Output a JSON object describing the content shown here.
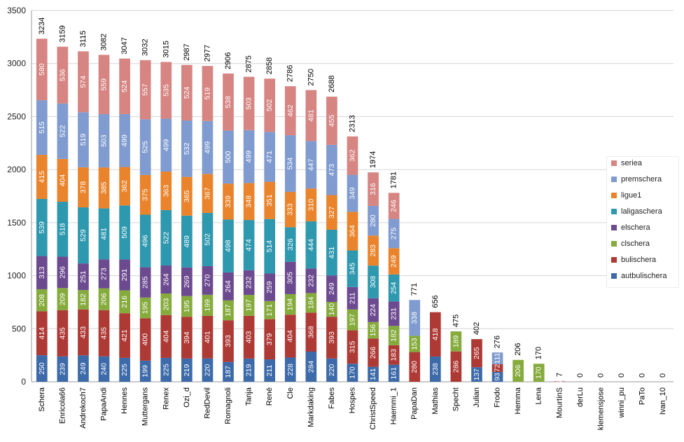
{
  "chart_data": {
    "type": "bar",
    "stacked": true,
    "ylim": [
      0,
      3500
    ],
    "yticks": [
      "0",
      "500",
      "1000",
      "1500",
      "2000",
      "2500",
      "3000",
      "3500"
    ],
    "grid": true,
    "legend_position": "right",
    "categories": [
      "Schera",
      "Enricola66",
      "Andrekoch7",
      "PapaAndi",
      "Hennes",
      "Muttergans",
      "Renex",
      "Ozi_d",
      "RedDevil",
      "Romagnoli",
      "Tanja",
      "René",
      "Cle",
      "Markdaking",
      "Fabes",
      "Hospes",
      "ChristSpeed",
      "Haemmi_1",
      "PapaDan",
      "Mathias",
      "Specht",
      "Julian",
      "Frodo",
      "Hemma",
      "Lena",
      "MourtinS",
      "derLu",
      "klemensjose",
      "winni_pu",
      "PaTo",
      "Ivan_10"
    ],
    "totals": [
      "3234",
      "3159",
      "3115",
      "3082",
      "3047",
      "3032",
      "3015",
      "2987",
      "2977",
      "2906",
      "2875",
      "2858",
      "2786",
      "2750",
      "2688",
      "2313",
      "1974",
      "1781",
      "771",
      "656",
      "475",
      "402",
      "276",
      "206",
      "170",
      "7",
      "0",
      "0",
      "0",
      "0",
      "0"
    ],
    "series": [
      {
        "name": "autbulischera",
        "color": "#3d6aa9",
        "values": [
          250,
          239,
          249,
          240,
          225,
          199,
          225,
          219,
          220,
          187,
          219,
          211,
          228,
          284,
          220,
          170,
          141,
          161,
          0,
          238,
          0,
          137,
          93,
          0,
          0,
          0,
          0,
          0,
          0,
          0,
          0
        ],
        "labels": [
          "250",
          "239",
          "249",
          "240",
          "225",
          "199",
          "225",
          "219",
          "220",
          "187",
          "219",
          "211",
          "228",
          "284",
          "220",
          "170",
          "141",
          "161",
          "",
          "238",
          "",
          "137",
          "93",
          "",
          "",
          "",
          "",
          "",
          "",
          "",
          ""
        ]
      },
      {
        "name": "bulischera",
        "color": "#ae3a36",
        "values": [
          414,
          435,
          433,
          435,
          421,
          400,
          404,
          394,
          401,
          393,
          403,
          379,
          404,
          368,
          393,
          315,
          266,
          183,
          280,
          418,
          286,
          265,
          72,
          0,
          0,
          0,
          0,
          0,
          0,
          0,
          0
        ],
        "labels": [
          "414",
          "435",
          "433",
          "435",
          "421",
          "400",
          "404",
          "394",
          "401",
          "393",
          "403",
          "379",
          "404",
          "368",
          "393",
          "315",
          "266",
          "183",
          "280",
          "418",
          "286",
          "265",
          "72",
          "",
          "",
          "",
          "",
          "",
          "",
          "",
          ""
        ]
      },
      {
        "name": "clschera",
        "color": "#86ab3d",
        "values": [
          208,
          209,
          182,
          206,
          216,
          195,
          203,
          195,
          199,
          187,
          197,
          171,
          194,
          184,
          140,
          197,
          156,
          182,
          153,
          0,
          189,
          0,
          0,
          206,
          170,
          0,
          0,
          0,
          0,
          0,
          0
        ],
        "labels": [
          "208",
          "209",
          "182",
          "206",
          "216",
          "195",
          "203",
          "195",
          "199",
          "187",
          "197",
          "171",
          "194",
          "184",
          "140",
          "197",
          "156",
          "182",
          "153",
          "",
          "189",
          "",
          "",
          "206",
          "170",
          "",
          "",
          "",
          "",
          "",
          ""
        ]
      },
      {
        "name": "elschera",
        "color": "#6c4a8f",
        "values": [
          313,
          296,
          251,
          273,
          291,
          285,
          264,
          269,
          270,
          264,
          232,
          259,
          305,
          232,
          249,
          211,
          224,
          231,
          0,
          0,
          0,
          0,
          0,
          0,
          0,
          0,
          0,
          0,
          0,
          0,
          0
        ],
        "labels": [
          "313",
          "296",
          "251",
          "273",
          "291",
          "285",
          "264",
          "269",
          "270",
          "264",
          "232",
          "259",
          "305",
          "232",
          "249",
          "211",
          "224",
          "231",
          "",
          "",
          "",
          "",
          "",
          "",
          "",
          "",
          "",
          "",
          "",
          "",
          ""
        ]
      },
      {
        "name": "laligaschera",
        "color": "#2e98af",
        "values": [
          539,
          518,
          529,
          481,
          509,
          496,
          522,
          489,
          502,
          498,
          474,
          514,
          326,
          444,
          431,
          345,
          308,
          254,
          0,
          0,
          0,
          0,
          0,
          0,
          0,
          0,
          0,
          0,
          0,
          0,
          0
        ],
        "labels": [
          "539",
          "518",
          "529",
          "481",
          "509",
          "496",
          "522",
          "489",
          "502",
          "498",
          "474",
          "514",
          "326",
          "444",
          "431",
          "345",
          "308",
          "254",
          "",
          "",
          "",
          "",
          "",
          "",
          "",
          "",
          "",
          "",
          "",
          "",
          ""
        ]
      },
      {
        "name": "ligue1",
        "color": "#e9842c",
        "values": [
          415,
          404,
          378,
          385,
          362,
          375,
          363,
          365,
          367,
          339,
          348,
          351,
          333,
          310,
          327,
          364,
          283,
          249,
          0,
          0,
          0,
          0,
          0,
          0,
          0,
          0,
          0,
          0,
          0,
          0,
          0
        ],
        "labels": [
          "415",
          "404",
          "378",
          "385",
          "362",
          "375",
          "363",
          "365",
          "367",
          "339",
          "348",
          "351",
          "333",
          "310",
          "327",
          "364",
          "283",
          "249",
          "",
          "",
          "",
          "",
          "",
          "",
          "",
          "",
          "",
          "",
          "",
          "",
          ""
        ]
      },
      {
        "name": "premschera",
        "color": "#7f9bcf",
        "values": [
          515,
          522,
          519,
          503,
          499,
          525,
          499,
          532,
          499,
          500,
          499,
          471,
          534,
          447,
          473,
          349,
          280,
          275,
          338,
          0,
          0,
          0,
          111,
          0,
          0,
          0,
          0,
          0,
          0,
          0,
          0
        ],
        "labels": [
          "515",
          "522",
          "519",
          "503",
          "499",
          "525",
          "499",
          "532",
          "499",
          "500",
          "499",
          "471",
          "534",
          "447",
          "473",
          "349",
          "280",
          "275",
          "338",
          "",
          "",
          "",
          "111",
          "",
          "",
          "",
          "",
          "",
          "",
          "",
          ""
        ]
      },
      {
        "name": "seriea",
        "color": "#d68582",
        "values": [
          580,
          536,
          574,
          559,
          524,
          557,
          535,
          524,
          519,
          538,
          503,
          502,
          462,
          481,
          455,
          362,
          316,
          246,
          0,
          0,
          0,
          0,
          0,
          0,
          0,
          7,
          0,
          0,
          0,
          0,
          0
        ],
        "labels": [
          "580",
          "536",
          "574",
          "559",
          "524",
          "557",
          "535",
          "524",
          "519",
          "538",
          "503",
          "502",
          "462",
          "481",
          "455",
          "362",
          "316",
          "246",
          "",
          "",
          "",
          "",
          "",
          "",
          "",
          "7",
          "",
          "",
          "",
          "",
          ""
        ]
      }
    ]
  }
}
